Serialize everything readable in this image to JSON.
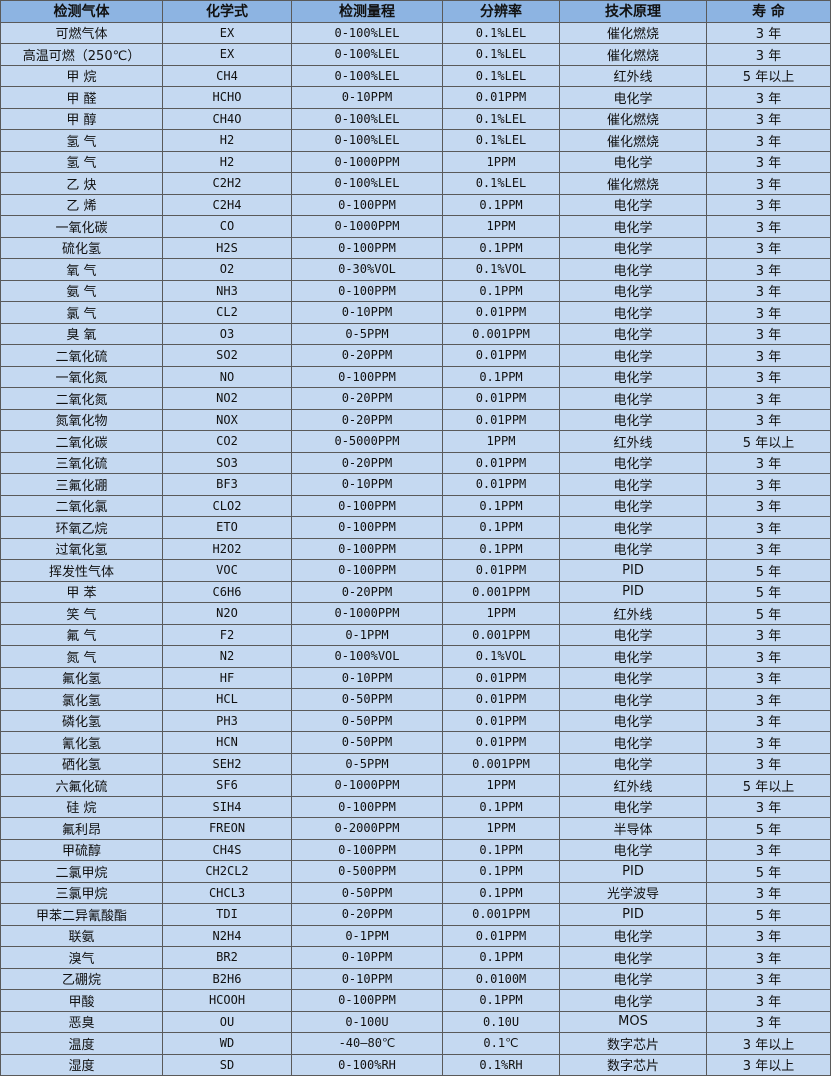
{
  "colors": {
    "header_bg": "#8db4e2",
    "body_bg": "#c5d9f1",
    "border": "#5a5a5a"
  },
  "table": {
    "headers": [
      "检测气体",
      "化学式",
      "检测量程",
      "分辨率",
      "技术原理",
      "寿 命"
    ],
    "rows": [
      [
        "可燃气体",
        "EX",
        "0-100%LEL",
        "0.1%LEL",
        "催化燃烧",
        "3 年"
      ],
      [
        "高温可燃（250℃）",
        "EX",
        "0-100%LEL",
        "0.1%LEL",
        "催化燃烧",
        "3 年"
      ],
      [
        "甲 烷",
        "CH4",
        "0-100%LEL",
        "0.1%LEL",
        "红外线",
        "5 年以上"
      ],
      [
        "甲 醛",
        "HCHO",
        "0-10PPM",
        "0.01PPM",
        "电化学",
        "3 年"
      ],
      [
        "甲 醇",
        "CH4O",
        "0-100%LEL",
        "0.1%LEL",
        "催化燃烧",
        "3 年"
      ],
      [
        "氢 气",
        "H2",
        "0-100%LEL",
        "0.1%LEL",
        "催化燃烧",
        "3 年"
      ],
      [
        "氢 气",
        "H2",
        "0-1000PPM",
        "1PPM",
        "电化学",
        "3 年"
      ],
      [
        "乙 炔",
        "C2H2",
        "0-100%LEL",
        "0.1%LEL",
        "催化燃烧",
        "3 年"
      ],
      [
        "乙 烯",
        "C2H4",
        "0-100PPM",
        "0.1PPM",
        "电化学",
        "3 年"
      ],
      [
        "一氧化碳",
        "CO",
        "0-1000PPM",
        "1PPM",
        "电化学",
        "3 年"
      ],
      [
        "硫化氢",
        "H2S",
        "0-100PPM",
        "0.1PPM",
        "电化学",
        "3 年"
      ],
      [
        "氧 气",
        "O2",
        "0-30%VOL",
        "0.1%VOL",
        "电化学",
        "3 年"
      ],
      [
        "氨 气",
        "NH3",
        "0-100PPM",
        "0.1PPM",
        "电化学",
        "3 年"
      ],
      [
        "氯 气",
        "CL2",
        "0-10PPM",
        "0.01PPM",
        "电化学",
        "3 年"
      ],
      [
        "臭 氧",
        "O3",
        "0-5PPM",
        "0.001PPM",
        "电化学",
        "3 年"
      ],
      [
        "二氧化硫",
        "SO2",
        "0-20PPM",
        "0.01PPM",
        "电化学",
        "3 年"
      ],
      [
        "一氧化氮",
        "NO",
        "0-100PPM",
        "0.1PPM",
        "电化学",
        "3 年"
      ],
      [
        "二氧化氮",
        "NO2",
        "0-20PPM",
        "0.01PPM",
        "电化学",
        "3 年"
      ],
      [
        "氮氧化物",
        "NOX",
        "0-20PPM",
        "0.01PPM",
        "电化学",
        "3 年"
      ],
      [
        "二氧化碳",
        "CO2",
        "0-5000PPM",
        "1PPM",
        "红外线",
        "5 年以上"
      ],
      [
        "三氧化硫",
        "SO3",
        "0-20PPM",
        "0.01PPM",
        "电化学",
        "3 年"
      ],
      [
        "三氟化硼",
        "BF3",
        "0-10PPM",
        "0.01PPM",
        "电化学",
        "3 年"
      ],
      [
        "二氧化氯",
        "CLO2",
        "0-100PPM",
        "0.1PPM",
        "电化学",
        "3 年"
      ],
      [
        "环氧乙烷",
        "ETO",
        "0-100PPM",
        "0.1PPM",
        "电化学",
        "3 年"
      ],
      [
        "过氧化氢",
        "H2O2",
        "0-100PPM",
        "0.1PPM",
        "电化学",
        "3 年"
      ],
      [
        "挥发性气体",
        "VOC",
        "0-100PPM",
        "0.01PPM",
        "PID",
        "5 年"
      ],
      [
        "甲 苯",
        "C6H6",
        "0-20PPM",
        "0.001PPM",
        "PID",
        "5 年"
      ],
      [
        "笑 气",
        "N2O",
        "0-1000PPM",
        "1PPM",
        "红外线",
        "5 年"
      ],
      [
        "氟 气",
        "F2",
        "0-1PPM",
        "0.001PPM",
        "电化学",
        "3 年"
      ],
      [
        "氮 气",
        "N2",
        "0-100%VOL",
        "0.1%VOL",
        "电化学",
        "3 年"
      ],
      [
        "氟化氢",
        "HF",
        "0-10PPM",
        "0.01PPM",
        "电化学",
        "3 年"
      ],
      [
        "氯化氢",
        "HCL",
        "0-50PPM",
        "0.01PPM",
        "电化学",
        "3 年"
      ],
      [
        "磷化氢",
        "PH3",
        "0-50PPM",
        "0.01PPM",
        "电化学",
        "3 年"
      ],
      [
        "氰化氢",
        "HCN",
        "0-50PPM",
        "0.01PPM",
        "电化学",
        "3 年"
      ],
      [
        "硒化氢",
        "SEH2",
        "0-5PPM",
        "0.001PPM",
        "电化学",
        "3 年"
      ],
      [
        "六氟化硫",
        "SF6",
        "0-1000PPM",
        "1PPM",
        "红外线",
        "5 年以上"
      ],
      [
        "硅 烷",
        "SIH4",
        "0-100PPM",
        "0.1PPM",
        "电化学",
        "3 年"
      ],
      [
        "氟利昂",
        "FREON",
        "0-2000PPM",
        "1PPM",
        "半导体",
        "5 年"
      ],
      [
        "甲硫醇",
        "CH4S",
        "0-100PPM",
        "0.1PPM",
        "电化学",
        "3 年"
      ],
      [
        "二氯甲烷",
        "CH2CL2",
        "0-500PPM",
        "0.1PPM",
        "PID",
        "5 年"
      ],
      [
        "三氯甲烷",
        "CHCL3",
        "0-50PPM",
        "0.1PPM",
        "光学波导",
        "3 年"
      ],
      [
        "甲苯二异氰酸酯",
        "TDI",
        "0-20PPM",
        "0.001PPM",
        "PID",
        "5 年"
      ],
      [
        "联氨",
        "N2H4",
        "0-1PPM",
        "0.01PPM",
        "电化学",
        "3 年"
      ],
      [
        "溴气",
        "BR2",
        "0-10PPM",
        "0.1PPM",
        "电化学",
        "3 年"
      ],
      [
        "乙硼烷",
        "B2H6",
        "0-10PPM",
        "0.0100M",
        "电化学",
        "3 年"
      ],
      [
        "甲酸",
        "HCOOH",
        "0-100PPM",
        "0.1PPM",
        "电化学",
        "3 年"
      ],
      [
        "恶臭",
        "OU",
        "0-100U",
        "0.10U",
        "MOS",
        "3 年"
      ],
      [
        "温度",
        "WD",
        "-40—80℃",
        "0.1℃",
        "数字芯片",
        "3 年以上"
      ],
      [
        "湿度",
        "SD",
        "0-100%RH",
        "0.1%RH",
        "数字芯片",
        "3 年以上"
      ]
    ]
  }
}
